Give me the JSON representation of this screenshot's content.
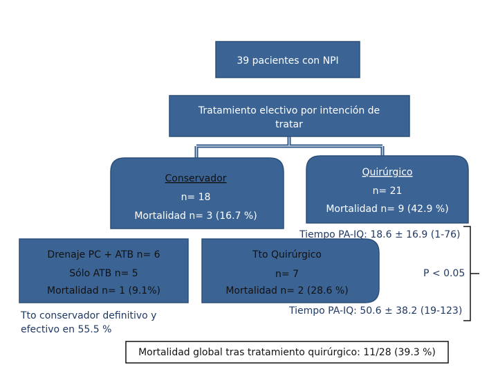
{
  "nodes": [
    {
      "lines": [
        "39 pacientes con NPI"
      ]
    },
    {
      "lines": [
        "Tratamiento electivo por intención de",
        "tratar"
      ]
    },
    {
      "title": "Conservador",
      "lines": [
        "n= 18",
        "Mortalidad n= 3 (16.7 %)"
      ]
    },
    {
      "title": "Quirúrgico",
      "lines": [
        "n= 21",
        "Mortalidad n= 9 (42.9 %)"
      ]
    },
    {
      "lines": [
        "Drenaje PC + ATB n= 6",
        "Sólo ATB n= 5",
        "Mortalidad n= 1 (9.1%)"
      ]
    },
    {
      "lines": [
        "Tto Quirúrgico",
        "n= 7",
        "Mortalidad n= 2 (28.6 %)"
      ]
    }
  ],
  "notes": {
    "tiempo_1": "Tiempo PA-IQ: 18.6 ± 16.9 (1-76)",
    "tiempo_2": "Tiempo PA-IQ: 50.6 ± 38.2 (19-123)",
    "conservador_definitivo": [
      "Tto conservador definitivo y",
      "efectivo en 55.5 %"
    ],
    "p_value": "P < 0.05",
    "mortalidad_global": "Mortalidad global tras tratamiento quirúrgico: 11/28 (39.3 %)"
  }
}
